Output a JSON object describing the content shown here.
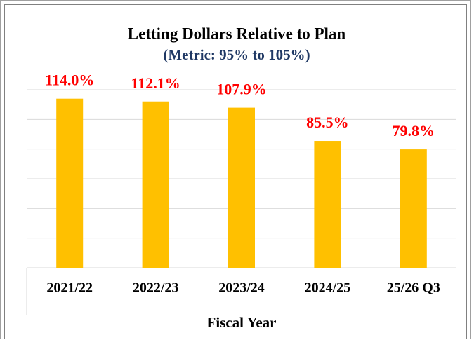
{
  "chart_data": {
    "type": "bar",
    "title": "Letting Dollars Relative to Plan",
    "subtitle": "(Metric: 95% to 105%)",
    "x_label": "Fiscal Year",
    "categories": [
      "2021/22",
      "2022/23",
      "2023/24",
      "2024/25",
      "25/26 Q3"
    ],
    "values": [
      114.0,
      112.1,
      107.9,
      85.5,
      79.8
    ],
    "value_labels": [
      "114.0%",
      "112.1%",
      "107.9%",
      "85.5%",
      "79.8%"
    ],
    "color": "#ffc000",
    "label_color": "#ff0000",
    "subtitle_color": "#1f3864",
    "ylim": [
      0,
      120
    ],
    "yticks": [
      0,
      20,
      40,
      60,
      80,
      100,
      120
    ],
    "grid": true
  }
}
